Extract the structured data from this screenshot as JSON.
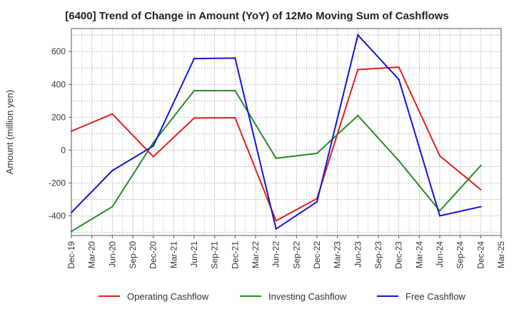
{
  "chart_data": {
    "type": "line",
    "title": "[6400]  Trend of Change in Amount (YoY) of 12Mo Moving Sum of Cashflows",
    "xlabel": "",
    "ylabel": "Amount (million yen)",
    "ylim": [
      -520,
      740
    ],
    "yticks": [
      -400,
      -200,
      0,
      200,
      400,
      600
    ],
    "ytick_labels": [
      "-400",
      "-200",
      "0",
      "200",
      "400",
      "600"
    ],
    "grid": true,
    "legend_position": "bottom-center",
    "categories": [
      "Dec-19",
      "Mar-20",
      "Jun-20",
      "Sep-20",
      "Dec-20",
      "Mar-21",
      "Jun-21",
      "Sep-21",
      "Dec-21",
      "Mar-22",
      "Jun-22",
      "Sep-22",
      "Dec-22",
      "Mar-23",
      "Jun-23",
      "Sep-23",
      "Dec-23",
      "Mar-24",
      "Jun-24",
      "Sep-24",
      "Dec-24",
      "Mar-25"
    ],
    "series": [
      {
        "name": "Operating Cashflow",
        "color": "#e02020",
        "values": [
          115,
          null,
          220,
          null,
          -40,
          null,
          195,
          null,
          197,
          null,
          -430,
          null,
          -295,
          null,
          490,
          null,
          505,
          null,
          -35,
          null,
          -240,
          null
        ]
      },
      {
        "name": "Investing Cashflow",
        "color": "#2a8a2a",
        "values": [
          -495,
          null,
          -345,
          null,
          45,
          null,
          362,
          null,
          362,
          null,
          -50,
          null,
          -20,
          null,
          210,
          null,
          -65,
          null,
          -370,
          null,
          -95,
          null
        ]
      },
      {
        "name": "Free Cashflow",
        "color": "#1515d0",
        "values": [
          -380,
          null,
          -125,
          null,
          25,
          null,
          557,
          null,
          560,
          null,
          -480,
          null,
          -315,
          null,
          700,
          null,
          430,
          null,
          -400,
          null,
          -345,
          null
        ]
      }
    ]
  }
}
